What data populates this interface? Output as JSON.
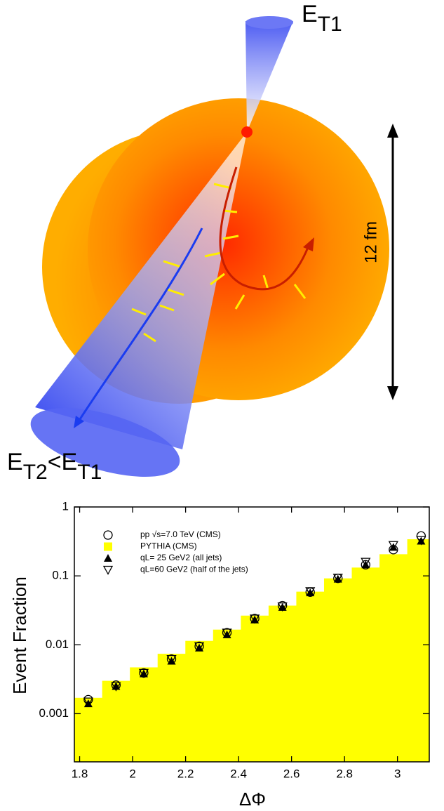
{
  "diagram": {
    "jet_label_1": [
      "E",
      "T1"
    ],
    "jet_label_2": [
      "E",
      "T2",
      "<E",
      "T1"
    ],
    "scale_label": "12 fm"
  },
  "chart_data": {
    "type": "histogram",
    "xlabel": "ΔΦ",
    "ylabel": "Event Fraction",
    "xlim": [
      1.78,
      3.12
    ],
    "xticks": [
      1.8,
      2,
      2.2,
      2.4,
      2.6,
      2.8,
      3
    ],
    "ylim": [
      0.0002,
      1
    ],
    "yticks": [
      1,
      0.1,
      0.01,
      0.001
    ],
    "log_y": true,
    "legend": "upper left",
    "bins": [
      1.7802,
      1.885,
      1.9897,
      2.0944,
      2.1991,
      2.3038,
      2.4086,
      2.5133,
      2.618,
      2.7227,
      2.8274,
      2.9322,
      3.0369,
      3.1416
    ],
    "x": [
      1.8326,
      1.9373,
      2.042,
      2.1468,
      2.2515,
      2.3562,
      2.4609,
      2.5656,
      2.6704,
      2.7751,
      2.8798,
      2.9845,
      3.0892
    ],
    "series": [
      {
        "name": "pp √s=7.0 TeV (CMS)",
        "marker": "circle-open",
        "color": "#000000",
        "values": [
          0.0016,
          0.0026,
          0.0039,
          0.0062,
          0.0095,
          0.015,
          0.024,
          0.037,
          0.058,
          0.092,
          0.145,
          0.24,
          0.38
        ]
      },
      {
        "name": "PYTHIA (CMS)",
        "marker": "histogram",
        "color": "#ffff00",
        "values": [
          0.0017,
          0.003,
          0.0047,
          0.0074,
          0.0114,
          0.0166,
          0.0265,
          0.037,
          0.059,
          0.092,
          0.132,
          0.206,
          0.34
        ]
      },
      {
        "name": "qL= 25 GeV2 (all jets)",
        "marker": "triangle-filled",
        "color": "#000000",
        "values": [
          0.0014,
          0.0025,
          0.0038,
          0.0058,
          0.009,
          0.014,
          0.023,
          0.035,
          0.057,
          0.09,
          0.145,
          0.26,
          0.32
        ]
      },
      {
        "name": "qL=60 GeV2 (half of the jets)",
        "marker": "triangle-down-open",
        "color": "#000000",
        "values": [
          0.0015,
          0.0025,
          0.0039,
          0.0062,
          0.0095,
          0.015,
          0.024,
          0.036,
          0.06,
          0.094,
          0.16,
          0.28,
          0.33
        ]
      }
    ]
  }
}
